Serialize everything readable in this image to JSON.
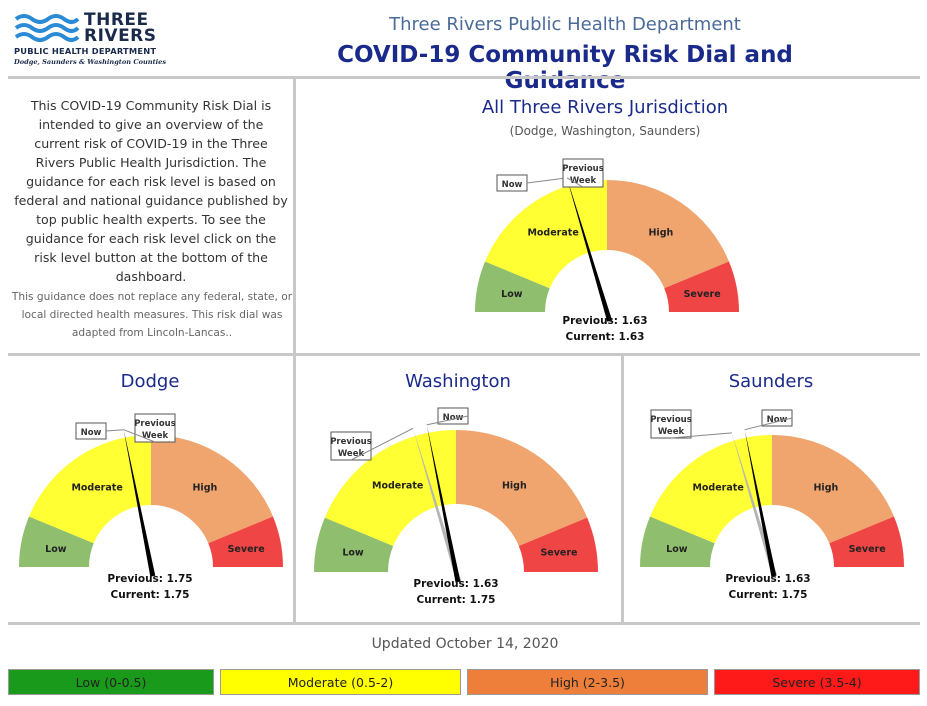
{
  "header": {
    "logo_line1": "THREE",
    "logo_line2": "RIVERS",
    "logo_line3": "PUBLIC HEALTH DEPARTMENT",
    "logo_line4": "Dodge, Saunders & Washington Counties",
    "department": "Three Rivers Public Health Department",
    "title": "COVID-19 Community Risk Dial and Guidance"
  },
  "intro": {
    "text": "This COVID-19 Community Risk Dial is intended to give an overview of the current risk of COVID-19 in the Three Rivers Public Health Jurisdiction. The guidance for each risk level is based on federal and national guidance published by top public health experts. To see the guidance for each risk level click on the risk level button at the bottom of the dashboard.",
    "disclaimer": "This guidance does not replace any federal, state, or local directed health measures. This risk dial was adapted from Lincoln-Lancas.."
  },
  "gauge_labels": {
    "low": "Low",
    "moderate": "Moderate",
    "high": "High",
    "severe": "Severe",
    "now": "Now",
    "previous_line1": "Previous",
    "previous_line2": "Week"
  },
  "colors": {
    "low": "#8fbf6e",
    "moderate": "#ffff33",
    "high": "#f0a46e",
    "severe": "#f04545",
    "current_needle": "#000000",
    "previous_needle": "#b5b5b5"
  },
  "panels": {
    "all": {
      "title": "All Three Rivers Jurisdiction",
      "subtitle": "(Dodge, Washington, Saunders)",
      "previous_text": "Previous: 1.63",
      "current_text": "Current: 1.63",
      "previous_value": 1.63,
      "current_value": 1.63
    },
    "dodge": {
      "title": "Dodge",
      "previous_text": "Previous: 1.75",
      "current_text": "Current: 1.75",
      "previous_value": 1.75,
      "current_value": 1.75
    },
    "washington": {
      "title": "Washington",
      "previous_text": "Previous: 1.63",
      "current_text": "Current: 1.75",
      "previous_value": 1.63,
      "current_value": 1.75
    },
    "saunders": {
      "title": "Saunders",
      "previous_text": "Previous: 1.63",
      "current_text": "Current: 1.75",
      "previous_value": 1.63,
      "current_value": 1.75
    }
  },
  "updated": "Updated October 14, 2020",
  "levels": [
    {
      "label": "Low (0-0.5)",
      "color": "#1a9a1a"
    },
    {
      "label": "Moderate (0.5-2)",
      "color": "#ffff00"
    },
    {
      "label": "High (2-3.5)",
      "color": "#ee7f3a"
    },
    {
      "label": "Severe (3.5-4)",
      "color": "#ff1a1a"
    }
  ]
}
